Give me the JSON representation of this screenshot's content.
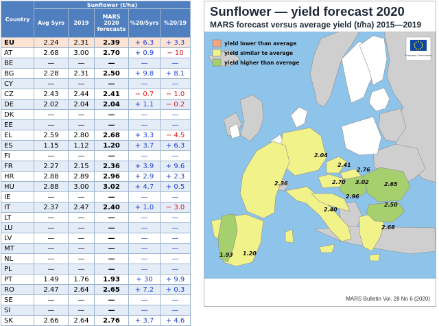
{
  "table": {
    "group_header": "Sunflower (t/ha)",
    "columns": {
      "country": "Country",
      "avg5": "Avg 5yrs",
      "y2019": "2019",
      "forecast_line1": "MARS",
      "forecast_line2": "2020",
      "forecast_line3": "forecasts",
      "pct5": "%20/5yrs",
      "pct19": "%20/19"
    },
    "rows": [
      {
        "country": "EU",
        "avg5": "2.24",
        "y2019": "2.31",
        "forecast": "2.39",
        "pct5": "+ 6.3",
        "pct19": "+ 3.3"
      },
      {
        "country": "AT",
        "avg5": "2.68",
        "y2019": "3.00",
        "forecast": "2.70",
        "pct5": "+ 0.9",
        "pct19": "− 10"
      },
      {
        "country": "BE",
        "avg5": "—",
        "y2019": "—",
        "forecast": "—",
        "pct5": "—",
        "pct19": "—"
      },
      {
        "country": "BG",
        "avg5": "2.28",
        "y2019": "2.31",
        "forecast": "2.50",
        "pct5": "+ 9.8",
        "pct19": "+ 8.1"
      },
      {
        "country": "CY",
        "avg5": "—",
        "y2019": "—",
        "forecast": "—",
        "pct5": "—",
        "pct19": "—"
      },
      {
        "country": "CZ",
        "avg5": "2.43",
        "y2019": "2.44",
        "forecast": "2.41",
        "pct5": "− 0.7",
        "pct19": "− 1.0"
      },
      {
        "country": "DE",
        "avg5": "2.02",
        "y2019": "2.04",
        "forecast": "2.04",
        "pct5": "+ 1.1",
        "pct19": "− 0.2"
      },
      {
        "country": "DK",
        "avg5": "—",
        "y2019": "—",
        "forecast": "—",
        "pct5": "—",
        "pct19": "—"
      },
      {
        "country": "EE",
        "avg5": "—",
        "y2019": "—",
        "forecast": "—",
        "pct5": "—",
        "pct19": "—"
      },
      {
        "country": "EL",
        "avg5": "2.59",
        "y2019": "2.80",
        "forecast": "2.68",
        "pct5": "+ 3.3",
        "pct19": "− 4.5"
      },
      {
        "country": "ES",
        "avg5": "1.15",
        "y2019": "1.12",
        "forecast": "1.20",
        "pct5": "+ 3.7",
        "pct19": "+ 6.3"
      },
      {
        "country": "FI",
        "avg5": "—",
        "y2019": "—",
        "forecast": "—",
        "pct5": "—",
        "pct19": "—"
      },
      {
        "country": "FR",
        "avg5": "2.27",
        "y2019": "2.15",
        "forecast": "2.36",
        "pct5": "+ 3.9",
        "pct19": "+ 9.6"
      },
      {
        "country": "HR",
        "avg5": "2.88",
        "y2019": "2.89",
        "forecast": "2.96",
        "pct5": "+ 2.9",
        "pct19": "+ 2.3"
      },
      {
        "country": "HU",
        "avg5": "2.88",
        "y2019": "3.00",
        "forecast": "3.02",
        "pct5": "+ 4.7",
        "pct19": "+ 0.5"
      },
      {
        "country": "IE",
        "avg5": "—",
        "y2019": "—",
        "forecast": "—",
        "pct5": "—",
        "pct19": "—"
      },
      {
        "country": "IT",
        "avg5": "2.37",
        "y2019": "2.47",
        "forecast": "2.40",
        "pct5": "+ 1.0",
        "pct19": "− 3.0"
      },
      {
        "country": "LT",
        "avg5": "—",
        "y2019": "—",
        "forecast": "—",
        "pct5": "—",
        "pct19": "—"
      },
      {
        "country": "LU",
        "avg5": "—",
        "y2019": "—",
        "forecast": "—",
        "pct5": "—",
        "pct19": "—"
      },
      {
        "country": "LV",
        "avg5": "—",
        "y2019": "—",
        "forecast": "—",
        "pct5": "—",
        "pct19": "—"
      },
      {
        "country": "MT",
        "avg5": "—",
        "y2019": "—",
        "forecast": "—",
        "pct5": "—",
        "pct19": "—"
      },
      {
        "country": "NL",
        "avg5": "—",
        "y2019": "—",
        "forecast": "—",
        "pct5": "—",
        "pct19": "—"
      },
      {
        "country": "PL",
        "avg5": "—",
        "y2019": "—",
        "forecast": "—",
        "pct5": "—",
        "pct19": "—"
      },
      {
        "country": "PT",
        "avg5": "1.49",
        "y2019": "1.76",
        "forecast": "1.93",
        "pct5": "+ 30",
        "pct19": "+ 9.9"
      },
      {
        "country": "RO",
        "avg5": "2.47",
        "y2019": "2.64",
        "forecast": "2.65",
        "pct5": "+ 7.2",
        "pct19": "+ 0.3"
      },
      {
        "country": "SE",
        "avg5": "—",
        "y2019": "—",
        "forecast": "—",
        "pct5": "—",
        "pct19": "—"
      },
      {
        "country": "SI",
        "avg5": "—",
        "y2019": "—",
        "forecast": "—",
        "pct5": "—",
        "pct19": "—"
      },
      {
        "country": "SK",
        "avg5": "2.66",
        "y2019": "2.64",
        "forecast": "2.76",
        "pct5": "+ 3.7",
        "pct19": "+ 4.6"
      }
    ]
  },
  "map": {
    "title": "Sunflower — yield forecast 2020",
    "subtitle": "MARS forecast versus average yield (t/ha) 2015—2019",
    "legend": [
      {
        "label": "yield lower than average",
        "color": "#f4a582"
      },
      {
        "label": "yield similar to average",
        "color": "#f2f28a"
      },
      {
        "label": "yield higher than average",
        "color": "#a6cf6e"
      }
    ],
    "labels": {
      "pt": "1.93",
      "es": "1.20",
      "fr": "2.36",
      "de": "2.04",
      "cz": "2.41",
      "sk": "2.76",
      "at": "2.70",
      "hu": "3.02",
      "ro": "2.65",
      "bg": "2.50",
      "hr": "2.96",
      "it": "2.40",
      "el": "2.68"
    },
    "logo_caption": "European Commission",
    "credit": "MARS Bulletin Vol. 28 No 6 (2020)",
    "colors": {
      "sea": "#8fc4ea",
      "non_eu": "#cfcfcf",
      "eu_no_data": "#ffffff",
      "border": "#8c8c8c"
    }
  }
}
